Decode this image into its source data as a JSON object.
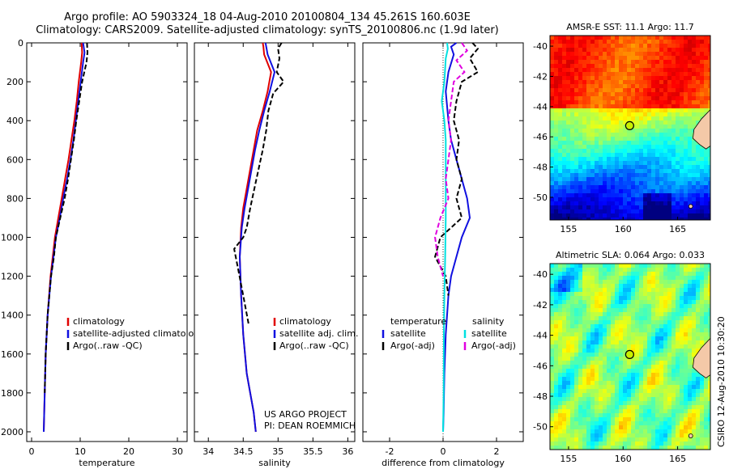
{
  "header": {
    "title_line1": "Argo profile: AO 5903324_18 04-Aug-2010 20100804_134 45.261S 160.603E",
    "title_line2": "Climatology: CARS2009. Satellite-adjusted climatology: synTS_20100806.nc (1.9d later)"
  },
  "side_label": "CSIRO 12-Aug-2010 10:30:20",
  "colors": {
    "red": "#e00000",
    "blue": "#1010e0",
    "black": "#000000",
    "cyan": "#00e0e0",
    "magenta": "#e000e0"
  },
  "chart_data": [
    {
      "type": "line",
      "xlabel": "temperature",
      "xlim": [
        -1,
        32
      ],
      "ylim": [
        0,
        2050
      ],
      "xticks": [
        0,
        10,
        20,
        30
      ],
      "yticks": [
        0,
        200,
        400,
        600,
        800,
        1000,
        1200,
        1400,
        1600,
        1800,
        2000
      ],
      "legend": [
        "climatology",
        "satellite-adjusted climatology",
        "Argo(..raw -QC)"
      ],
      "series": [
        {
          "name": "climatology",
          "color": "red",
          "style": "solid",
          "x": [
            10.3,
            10.4,
            10.2,
            9.7,
            9.3,
            8.8,
            8.2,
            7.6,
            6.9,
            6.2,
            5.5,
            4.8,
            3.9,
            3.3,
            2.9,
            2.7,
            2.6,
            2.5
          ],
          "y": [
            0,
            50,
            100,
            200,
            300,
            400,
            500,
            600,
            700,
            800,
            900,
            1000,
            1200,
            1400,
            1600,
            1800,
            1900,
            2000
          ]
        },
        {
          "name": "satellite-adjusted climatology",
          "color": "blue",
          "style": "solid",
          "x": [
            10.6,
            10.9,
            10.6,
            10.1,
            9.6,
            9.1,
            8.6,
            8.0,
            7.3,
            6.5,
            5.8,
            5.0,
            4.0,
            3.3,
            2.9,
            2.7,
            2.6,
            2.5
          ],
          "y": [
            0,
            50,
            100,
            200,
            300,
            400,
            500,
            600,
            700,
            800,
            900,
            1000,
            1200,
            1400,
            1600,
            1800,
            1900,
            2000
          ]
        },
        {
          "name": "Argo(..raw -QC)",
          "color": "black",
          "style": "dashed",
          "x": [
            11.4,
            11.5,
            11.3,
            10.4,
            9.8,
            9.2,
            8.7,
            8.1,
            7.5,
            6.8,
            5.9,
            5.0,
            4.6,
            4.0,
            3.3,
            2.9,
            2.7
          ],
          "y": [
            0,
            50,
            100,
            200,
            300,
            400,
            500,
            600,
            700,
            800,
            900,
            1000,
            1100,
            1200,
            1400,
            1600,
            1800
          ]
        }
      ]
    },
    {
      "type": "line",
      "xlabel": "salinity",
      "xlim": [
        33.8,
        36.1
      ],
      "ylim": [
        0,
        2050
      ],
      "xticks": [
        34,
        34.5,
        35,
        35.5,
        36
      ],
      "legend": [
        "climatology",
        "satellite adj. clim.",
        "Argo(..raw -QC)"
      ],
      "annotation": [
        "US ARGO PROJECT",
        "PI: DEAN ROEMMICH"
      ],
      "series": [
        {
          "name": "climatology",
          "color": "red",
          "style": "solid",
          "x": [
            34.78,
            34.79,
            34.8,
            34.9,
            34.85,
            34.78,
            34.7,
            34.65,
            34.6,
            34.55,
            34.5,
            34.47,
            34.45,
            34.47,
            34.5,
            34.55,
            34.6,
            34.65,
            34.68
          ],
          "y": [
            0,
            20,
            60,
            150,
            250,
            350,
            450,
            550,
            650,
            750,
            850,
            950,
            1100,
            1300,
            1500,
            1700,
            1800,
            1900,
            2000
          ]
        },
        {
          "name": "satellite adj. clim.",
          "color": "blue",
          "style": "solid",
          "x": [
            34.82,
            34.83,
            34.85,
            34.95,
            34.88,
            34.8,
            34.73,
            34.67,
            34.62,
            34.57,
            34.52,
            34.48,
            34.45,
            34.47,
            34.5,
            34.55,
            34.6,
            34.65,
            34.68
          ],
          "y": [
            0,
            20,
            60,
            150,
            250,
            350,
            450,
            550,
            650,
            750,
            850,
            950,
            1100,
            1300,
            1500,
            1700,
            1800,
            1900,
            2000
          ]
        },
        {
          "name": "Argo(..raw -QC)",
          "color": "black",
          "style": "dashed",
          "x": [
            35.05,
            35.0,
            35.02,
            34.98,
            35.08,
            34.93,
            34.86,
            34.83,
            34.78,
            34.72,
            34.66,
            34.6,
            34.55,
            34.5,
            34.37,
            34.42,
            34.5,
            34.58
          ],
          "y": [
            0,
            30,
            80,
            150,
            200,
            260,
            350,
            450,
            550,
            650,
            750,
            850,
            950,
            1000,
            1060,
            1150,
            1300,
            1450
          ]
        }
      ]
    },
    {
      "type": "line",
      "xlabel": "difference from climatology",
      "xlim": [
        -3,
        3
      ],
      "ylim": [
        0,
        2050
      ],
      "xticks": [
        -2,
        0,
        2
      ],
      "legend_groups": [
        {
          "title": "temperature",
          "items": [
            "satellite",
            "Argo(-adj)"
          ]
        },
        {
          "title": "salinity",
          "items": [
            "satellite",
            "Argo(-adj)"
          ]
        }
      ],
      "series": [
        {
          "name": "satellite",
          "color": "blue",
          "style": "solid",
          "x": [
            0.5,
            0.3,
            0.4,
            0.2,
            0.1,
            0.2,
            0.3,
            0.5,
            0.7,
            0.9,
            1.0,
            0.7,
            0.5,
            0.3,
            0.2,
            0.1,
            0.05,
            0.02,
            0.0
          ],
          "y": [
            0,
            20,
            60,
            150,
            250,
            400,
            500,
            600,
            700,
            800,
            900,
            1000,
            1100,
            1200,
            1300,
            1500,
            1700,
            1900,
            2000
          ]
        },
        {
          "name": "Argo(-adj)",
          "color": "black",
          "style": "dashed",
          "x": [
            1.1,
            1.3,
            1.0,
            1.3,
            0.7,
            0.5,
            0.4,
            0.6,
            0.5,
            0.7,
            0.5,
            0.7,
            0.3,
            -0.1,
            -0.3,
            0.1,
            0.2
          ],
          "y": [
            0,
            30,
            80,
            150,
            200,
            300,
            400,
            500,
            600,
            700,
            800,
            900,
            950,
            1000,
            1100,
            1200,
            1300
          ]
        },
        {
          "name": "satellite",
          "color": "cyan",
          "style": "solid",
          "x": [
            0.15,
            0.18,
            0.1,
            0.05,
            -0.05,
            0.05,
            0.1,
            0.1,
            0.1,
            0.1,
            0.08,
            0.05,
            0.03,
            0.02,
            0.0
          ],
          "y": [
            0,
            30,
            80,
            200,
            300,
            400,
            500,
            600,
            700,
            900,
            1100,
            1300,
            1500,
            1800,
            2000
          ]
        },
        {
          "name": "Argo(-adj)",
          "color": "magenta",
          "style": "dashed",
          "x": [
            0.7,
            0.9,
            0.5,
            0.8,
            0.4,
            0.3,
            0.2,
            0.3,
            0.2,
            0.1,
            0.2,
            -0.1,
            -0.3,
            -0.2,
            0.0
          ],
          "y": [
            0,
            40,
            90,
            150,
            200,
            300,
            400,
            500,
            600,
            700,
            800,
            900,
            1000,
            1100,
            1200
          ]
        }
      ]
    },
    {
      "type": "heatmap",
      "title": "AMSR-E SST: 11.1  Argo: 11.7",
      "xlim": [
        153.3,
        168
      ],
      "ylim": [
        -51.5,
        -39.3
      ],
      "xticks": [
        155,
        160,
        165
      ],
      "yticks": [
        -40,
        -42,
        -44,
        -46,
        -48,
        -50
      ],
      "marker": {
        "lon": 160.603,
        "lat": -45.261
      },
      "palette": "jet"
    },
    {
      "type": "heatmap",
      "title": "Altimetric SLA: 0.064  Argo: 0.033",
      "xlim": [
        153.3,
        168
      ],
      "ylim": [
        -51.5,
        -39.3
      ],
      "xticks": [
        155,
        160,
        165
      ],
      "yticks": [
        -40,
        -42,
        -44,
        -46,
        -48,
        -50
      ],
      "marker": {
        "lon": 160.603,
        "lat": -45.261
      },
      "palette": "jet"
    }
  ]
}
